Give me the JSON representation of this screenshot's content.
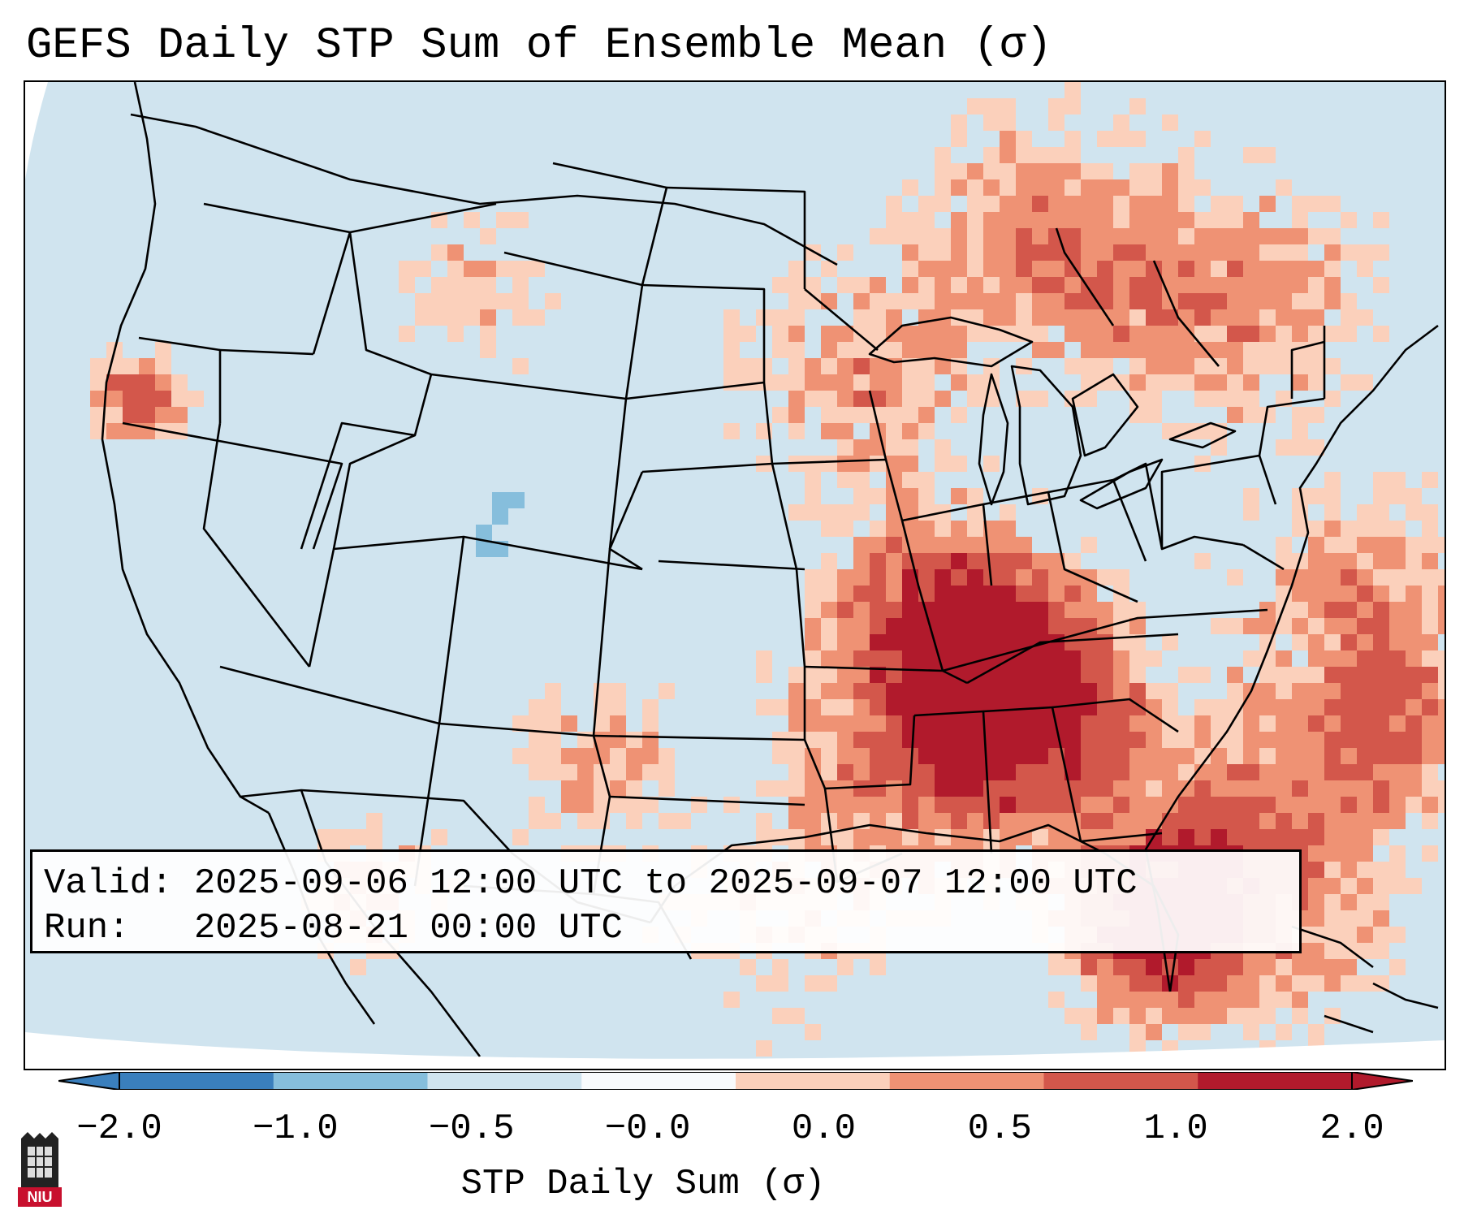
{
  "title": "GEFS Daily STP Sum of Ensemble Mean (σ)",
  "info": {
    "valid_line": "Valid: 2025-09-06 12:00 UTC to 2025-09-07 12:00 UTC",
    "run_line": "Run:   2025-08-21 00:00 UTC"
  },
  "colorbar": {
    "label": "STP Daily Sum (σ)",
    "ticks": [
      "−2.0",
      "−1.0",
      "−0.5",
      "−0.0",
      "0.0",
      "0.5",
      "1.0",
      "2.0"
    ],
    "colors": [
      "#3a7fbd",
      "#86bedc",
      "#d0e4ef",
      "#f8fafc",
      "#fbd0bb",
      "#ef9274",
      "#d3574b",
      "#b11a2c"
    ]
  },
  "map_data": {
    "region": "Contiguous United States",
    "color_scale_levels": [
      -2.0,
      -1.0,
      -0.5,
      0.0,
      0.5,
      1.0,
      2.0
    ],
    "max_anomaly_areas": [
      "Mississippi / Alabama / Tennessee",
      "Northern California",
      "Atlantic off the Southeast coast",
      "Florida"
    ],
    "negative_anomaly_areas": [
      "Colorado"
    ]
  },
  "logo": {
    "text": "NIU"
  }
}
